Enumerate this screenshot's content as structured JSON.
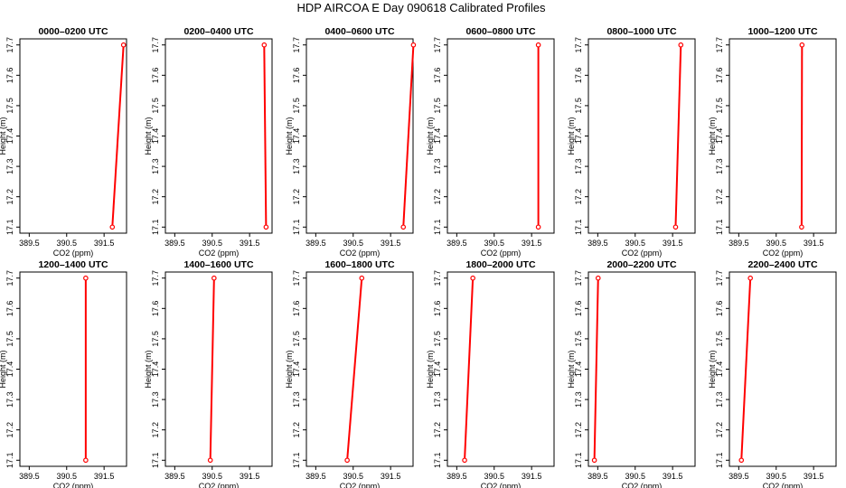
{
  "title": "HDP AIRCOA E  Day 090618  Calibrated Profiles",
  "xlabel": "CO2 (ppm)",
  "ylabel": "Height (m)",
  "x_ticks": [
    "389.5",
    "390.5",
    "391.5"
  ],
  "y_ticks": [
    "17.1",
    "17.2",
    "17.3",
    "17.4",
    "17.5",
    "17.6",
    "17.7"
  ],
  "line_color": "#ff0000",
  "marker_color": "#ff0000",
  "chart_data": {
    "type": "line",
    "title": "HDP AIRCOA E  Day 090618  Calibrated Profiles",
    "xlabel": "CO2 (ppm)",
    "ylabel": "Height (m)",
    "xlim": [
      389.25,
      392.1
    ],
    "ylim": [
      17.08,
      17.72
    ],
    "grid": false,
    "series": [
      {
        "name": "0000–0200 UTC",
        "x": [
          391.72,
          392.02
        ],
        "y": [
          17.1,
          17.7
        ]
      },
      {
        "name": "0200–0400 UTC",
        "x": [
          391.94,
          391.89
        ],
        "y": [
          17.1,
          17.7
        ]
      },
      {
        "name": "0400–0600 UTC",
        "x": [
          391.84,
          392.11
        ],
        "y": [
          17.1,
          17.7
        ]
      },
      {
        "name": "0600–0800 UTC",
        "x": [
          391.68,
          391.68
        ],
        "y": [
          17.1,
          17.7
        ]
      },
      {
        "name": "0800–1000 UTC",
        "x": [
          391.58,
          391.72
        ],
        "y": [
          17.1,
          17.7
        ]
      },
      {
        "name": "1000–1200 UTC",
        "x": [
          391.18,
          391.19
        ],
        "y": [
          17.1,
          17.7
        ]
      },
      {
        "name": "1200–1400 UTC",
        "x": [
          391.01,
          391.01
        ],
        "y": [
          17.1,
          17.7
        ]
      },
      {
        "name": "1400–1600 UTC",
        "x": [
          390.45,
          390.55
        ],
        "y": [
          17.1,
          17.7
        ]
      },
      {
        "name": "1600–1800 UTC",
        "x": [
          390.34,
          390.73
        ],
        "y": [
          17.1,
          17.7
        ]
      },
      {
        "name": "1800–2000 UTC",
        "x": [
          389.71,
          389.93
        ],
        "y": [
          17.1,
          17.7
        ]
      },
      {
        "name": "2000–2200 UTC",
        "x": [
          389.41,
          389.51
        ],
        "y": [
          17.1,
          17.7
        ]
      },
      {
        "name": "2200–2400 UTC",
        "x": [
          389.57,
          389.81
        ],
        "y": [
          17.1,
          17.7
        ]
      }
    ]
  }
}
